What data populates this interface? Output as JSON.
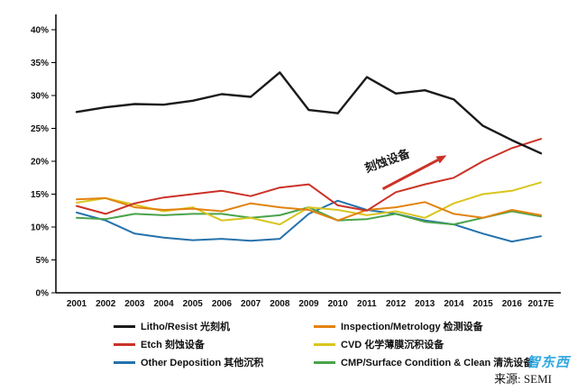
{
  "source": {
    "label": "来源: SEMI"
  },
  "watermark": "智东西",
  "annotation": {
    "text": "刻蚀设备"
  },
  "chart_data": {
    "type": "line",
    "x": [
      "2001",
      "2002",
      "2003",
      "2004",
      "2005",
      "2006",
      "2007",
      "2008",
      "2009",
      "2010",
      "2011",
      "2012",
      "2013",
      "2014",
      "2015",
      "2016",
      "2017E"
    ],
    "ylim": [
      0,
      40
    ],
    "ytick_step": 5,
    "ytick_suffix": "%",
    "grid": false,
    "legend_position": "bottom",
    "series": [
      {
        "name": "Litho/Resist 光刻机",
        "color": "#1a1a1a",
        "values": [
          27.5,
          28.2,
          28.7,
          28.6,
          29.2,
          30.2,
          29.8,
          33.5,
          27.8,
          27.3,
          32.8,
          30.3,
          30.8,
          29.4,
          25.4,
          23.2,
          21.2
        ]
      },
      {
        "name": "Inspection/Metrology 检测设备",
        "color": "#e2830f",
        "values": [
          14.2,
          14.4,
          13.0,
          12.6,
          12.8,
          12.4,
          13.6,
          13.0,
          12.6,
          11.0,
          12.6,
          13.0,
          13.8,
          12.0,
          11.4,
          12.6,
          11.8
        ]
      },
      {
        "name": "Etch 刻蚀设备",
        "color": "#cb3227",
        "values": [
          13.2,
          12.0,
          13.6,
          14.5,
          15.0,
          15.5,
          14.7,
          16.0,
          16.5,
          13.3,
          12.5,
          15.3,
          16.5,
          17.5,
          20.0,
          22.0,
          23.4
        ]
      },
      {
        "name": "CVD 化学薄膜沉积设备",
        "color": "#d9c51f",
        "values": [
          13.7,
          14.4,
          13.4,
          12.4,
          13.0,
          11.0,
          11.4,
          10.4,
          13.0,
          12.6,
          11.8,
          12.4,
          11.4,
          13.6,
          15.0,
          15.5,
          16.8
        ]
      },
      {
        "name": "Other Deposition 其他沉积",
        "color": "#2572ac",
        "values": [
          12.2,
          11.0,
          9.0,
          8.4,
          8.0,
          8.2,
          7.9,
          8.2,
          12.0,
          14.0,
          12.6,
          12.0,
          11.0,
          10.4,
          9.0,
          7.8,
          8.6
        ]
      },
      {
        "name": "CMP/Surface Condition & Clean 清洗设备",
        "color": "#4aa34a",
        "values": [
          11.4,
          11.2,
          12.0,
          11.8,
          12.0,
          12.0,
          11.4,
          11.8,
          13.0,
          11.0,
          11.2,
          12.0,
          10.8,
          10.4,
          11.4,
          12.4,
          11.6
        ]
      }
    ]
  }
}
